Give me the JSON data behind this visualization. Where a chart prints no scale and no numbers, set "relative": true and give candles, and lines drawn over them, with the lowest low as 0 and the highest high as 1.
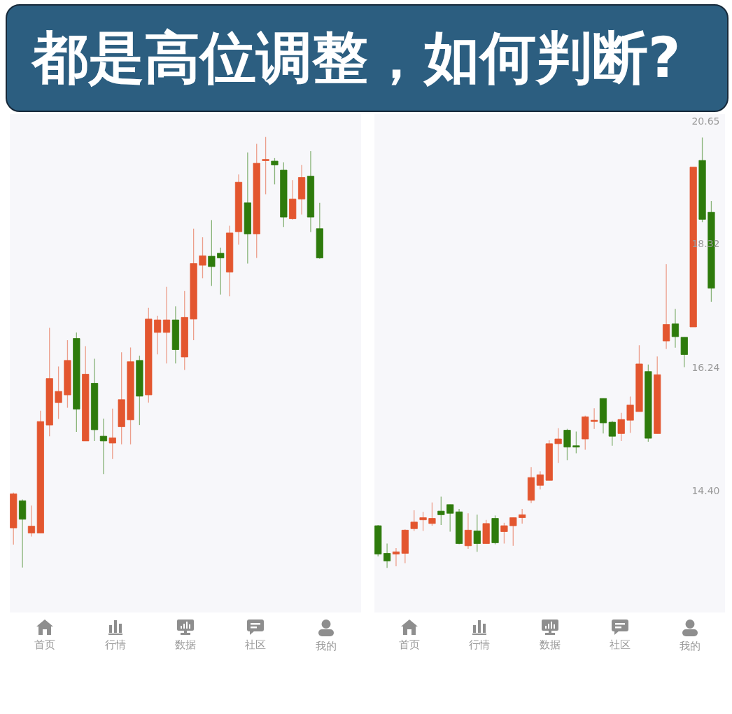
{
  "chart_data": [
    {
      "type": "candlestick",
      "title": "都是高位调整，如何判断?",
      "relative": true,
      "categories": [
        null,
        null,
        null,
        null,
        null,
        null,
        null,
        null,
        null,
        null,
        null,
        null,
        null,
        null,
        null,
        null,
        null,
        null,
        null,
        null,
        null,
        null,
        null,
        null,
        null,
        null,
        null,
        null,
        null,
        null,
        null,
        null,
        null,
        null,
        null
      ],
      "ohlc": [
        [
          0.092,
          0.174,
          0.053,
          0.171
        ],
        [
          0.155,
          0.158,
          0,
          0.112
        ],
        [
          0.08,
          0.144,
          0.072,
          0.096
        ],
        [
          0.08,
          0.364,
          0.08,
          0.339
        ],
        [
          0.331,
          0.557,
          0.305,
          0.439
        ],
        [
          0.383,
          0.467,
          0.345,
          0.409
        ],
        [
          0.401,
          0.528,
          0.371,
          0.481
        ],
        [
          0.532,
          0.546,
          0.315,
          0.368
        ],
        [
          0.294,
          0.514,
          0.294,
          0.449
        ],
        [
          0.428,
          0.485,
          0.294,
          0.32
        ],
        [
          0.305,
          0.346,
          0.217,
          0.294
        ],
        [
          0.289,
          0.369,
          0.252,
          0.301
        ],
        [
          0.327,
          0.5,
          0.286,
          0.39
        ],
        [
          0.343,
          0.511,
          0.286,
          0.478
        ],
        [
          0.481,
          0.492,
          0.331,
          0.398
        ],
        [
          0.401,
          0.603,
          0.383,
          0.577
        ],
        [
          0.546,
          0.585,
          0.495,
          0.575
        ],
        [
          0.546,
          0.652,
          0.474,
          0.575
        ],
        [
          0.575,
          0.607,
          0.474,
          0.506
        ],
        [
          0.489,
          0.642,
          0.459,
          0.581
        ],
        [
          0.577,
          0.787,
          0.528,
          0.706
        ],
        [
          0.702,
          0.767,
          0.672,
          0.724
        ],
        [
          0.723,
          0.807,
          0.654,
          0.699
        ],
        [
          0.73,
          0.743,
          0.634,
          0.719
        ],
        [
          0.686,
          0.794,
          0.63,
          0.777
        ],
        [
          0.78,
          0.913,
          0.75,
          0.895
        ],
        [
          0.847,
          0.964,
          0.706,
          0.775
        ],
        [
          0.775,
          0.984,
          0.719,
          0.939
        ],
        [
          0.945,
          1,
          0.867,
          0.948
        ],
        [
          0.944,
          0.951,
          0.89,
          0.935
        ],
        [
          0.923,
          0.941,
          0.791,
          0.814
        ],
        [
          0.81,
          0.9,
          0.808,
          0.856
        ],
        [
          0.856,
          0.935,
          0.82,
          0.906
        ],
        [
          0.909,
          0.967,
          0.779,
          0.814
        ],
        [
          0.787,
          0.847,
          0.717,
          0.719
        ]
      ],
      "colors": [
        "#e3562f",
        "#2e7b0c",
        "#e3562f",
        "#e3562f",
        "#e3562f",
        "#e3562f",
        "#e3562f",
        "#2e7b0c",
        "#e3562f",
        "#2e7b0c",
        "#2e7b0c",
        "#e3562f",
        "#e3562f",
        "#e3562f",
        "#2e7b0c",
        "#e3562f",
        "#e3562f",
        "#e3562f",
        "#2e7b0c",
        "#e3562f",
        "#e3562f",
        "#e3562f",
        "#2e7b0c",
        "#2e7b0c",
        "#e3562f",
        "#e3562f",
        "#2e7b0c",
        "#e3562f",
        "#e3562f",
        "#2e7b0c",
        "#2e7b0c",
        "#e3562f",
        "#e3562f",
        "#2e7b0c",
        "#2e7b0c"
      ],
      "annotations": [
        "首页",
        "行情",
        "数据",
        "社区",
        "我的"
      ]
    },
    {
      "type": "candlestick",
      "log": true,
      "categories": [
        null,
        null,
        null,
        null,
        null,
        null,
        null,
        null,
        null,
        null,
        null,
        null,
        null,
        null,
        null,
        null,
        null,
        null,
        null,
        null,
        null,
        null,
        null,
        null,
        null,
        null,
        null,
        null,
        null,
        null,
        null,
        null,
        null,
        null,
        null,
        null,
        null,
        null
      ],
      "ohlc": [
        [
          13.92,
          13.93,
          13.51,
          13.54
        ],
        [
          13.55,
          13.68,
          13.36,
          13.45
        ],
        [
          13.54,
          13.62,
          13.38,
          13.57
        ],
        [
          13.55,
          13.87,
          13.42,
          13.86
        ],
        [
          13.88,
          14.13,
          13.85,
          13.97
        ],
        [
          14.0,
          14.11,
          13.85,
          14.03
        ],
        [
          13.95,
          14.24,
          13.92,
          14.02
        ],
        [
          14.12,
          14.32,
          13.93,
          14.07
        ],
        [
          14.21,
          14.21,
          13.84,
          14.09
        ],
        [
          14.11,
          14.15,
          13.67,
          13.68
        ],
        [
          13.65,
          14.09,
          13.61,
          13.86
        ],
        [
          13.85,
          14.07,
          13.57,
          13.68
        ],
        [
          13.68,
          14.0,
          13.68,
          13.95
        ],
        [
          14.02,
          14.06,
          13.67,
          13.69
        ],
        [
          13.84,
          13.96,
          13.68,
          13.92
        ],
        [
          13.92,
          14.03,
          13.65,
          14.03
        ],
        [
          14.03,
          14.15,
          13.95,
          14.07
        ],
        [
          14.27,
          14.74,
          14.23,
          14.59
        ],
        [
          14.48,
          14.68,
          14.42,
          14.63
        ],
        [
          14.55,
          15.13,
          14.55,
          15.08
        ],
        [
          15.08,
          15.31,
          14.8,
          15.15
        ],
        [
          15.28,
          15.3,
          14.84,
          15.03
        ],
        [
          15.05,
          15.26,
          14.94,
          15.03
        ],
        [
          15.15,
          15.5,
          14.99,
          15.48
        ],
        [
          15.41,
          15.61,
          15.3,
          15.43
        ],
        [
          15.76,
          15.76,
          15.23,
          15.39
        ],
        [
          15.4,
          15.42,
          15.05,
          15.19
        ],
        [
          15.23,
          15.54,
          15.12,
          15.44
        ],
        [
          15.43,
          15.79,
          15.24,
          15.66
        ],
        [
          15.56,
          16.6,
          15.56,
          16.3
        ],
        [
          16.18,
          16.29,
          15.11,
          15.16
        ],
        [
          15.23,
          16.42,
          15.23,
          16.13
        ],
        [
          16.67,
          17.97,
          16.54,
          16.94
        ],
        [
          16.95,
          17.2,
          16.56,
          16.74
        ],
        [
          16.73,
          16.73,
          16.25,
          16.45
        ],
        [
          16.9,
          19.75,
          16.9,
          19.75
        ],
        [
          19.88,
          20.33,
          18.72,
          18.77
        ],
        [
          18.9,
          19.11,
          17.32,
          17.55
        ]
      ],
      "colors": [
        "#2e7b0c",
        "#2e7b0c",
        "#e3562f",
        "#e3562f",
        "#e3562f",
        "#e3562f",
        "#e3562f",
        "#2e7b0c",
        "#2e7b0c",
        "#2e7b0c",
        "#e3562f",
        "#2e7b0c",
        "#e3562f",
        "#2e7b0c",
        "#e3562f",
        "#e3562f",
        "#e3562f",
        "#e3562f",
        "#e3562f",
        "#e3562f",
        "#e3562f",
        "#2e7b0c",
        "#2e7b0c",
        "#e3562f",
        "#e3562f",
        "#2e7b0c",
        "#2e7b0c",
        "#e3562f",
        "#e3562f",
        "#e3562f",
        "#2e7b0c",
        "#e3562f",
        "#e3562f",
        "#2e7b0c",
        "#2e7b0c",
        "#e3562f",
        "#2e7b0c",
        "#2e7b0c"
      ],
      "ylim": [
        12.79,
        20.8
      ],
      "yticks": [
        {
          "value": 14.4,
          "label": "14.40"
        },
        16.24,
        18.32,
        20.65
      ],
      "tick_labels": "y",
      "annotations": [
        "首页",
        "行情",
        "数据",
        "社区",
        "我的"
      ]
    }
  ]
}
